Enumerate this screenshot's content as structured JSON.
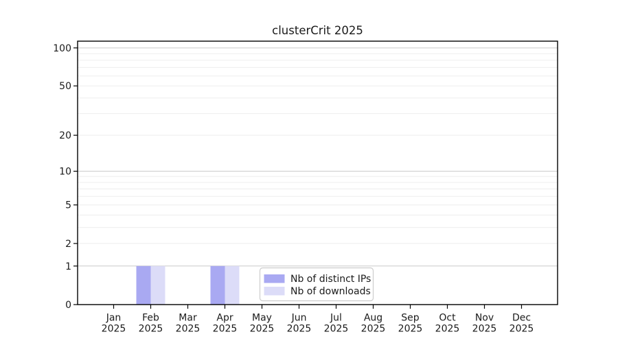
{
  "chart_data": {
    "type": "bar",
    "title": "clusterCrit 2025",
    "categories": [
      "Jan",
      "Feb",
      "Mar",
      "Apr",
      "May",
      "Jun",
      "Jul",
      "Aug",
      "Sep",
      "Oct",
      "Nov",
      "Dec"
    ],
    "year_label": "2025",
    "series": [
      {
        "name": "Nb of distinct IPs",
        "color": "#a9a9f2",
        "values": [
          0,
          1,
          0,
          1,
          0,
          0,
          0,
          0,
          0,
          0,
          0,
          0
        ]
      },
      {
        "name": "Nb of downloads",
        "color": "#dcdcf8",
        "values": [
          0,
          1,
          0,
          1,
          0,
          0,
          0,
          0,
          0,
          0,
          0,
          0
        ]
      }
    ],
    "y_axis": {
      "scale": "log1p",
      "ticks": [
        0,
        1,
        2,
        5,
        10,
        20,
        50,
        100
      ],
      "max": 113
    },
    "grid": {
      "minor_values": [
        1,
        2,
        3,
        4,
        5,
        6,
        7,
        8,
        9,
        10,
        20,
        30,
        40,
        50,
        60,
        70,
        80,
        90,
        100
      ],
      "emphasis_values": [
        1,
        10,
        100
      ],
      "minor_color": "#ededed",
      "emphasis_color": "#c9c9c9"
    },
    "legend": {
      "position": "bottom-center-inside",
      "border_color": "#cccccc",
      "entries": [
        "Nb of distinct IPs",
        "Nb of downloads"
      ]
    },
    "frame_color": "#000000"
  }
}
